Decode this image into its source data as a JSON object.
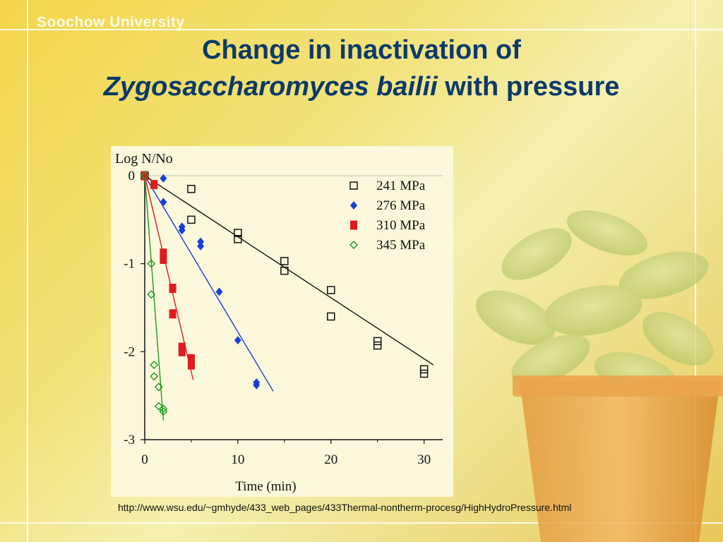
{
  "header": {
    "brand": "Soochow University",
    "title_line1": "Change in inactivation of",
    "title_line2_italic": "Zygosaccharomyces bailii",
    "title_line2_rest": " with pressure"
  },
  "source_url": "http://www.wsu.edu/~gmhyde/433_web_pages/433Thermal-nontherm-procesg/HighHydroPressure.html",
  "decor": {
    "plant_icon": "potted-plant-icon"
  },
  "chart_data": {
    "type": "scatter",
    "title": "",
    "xlabel": "Time (min)",
    "ylabel": "Log N/No",
    "xlim": [
      0,
      32
    ],
    "ylim": [
      -3,
      0
    ],
    "xticks": [
      0,
      10,
      20,
      30
    ],
    "yticks": [
      0,
      -1,
      -2,
      -3
    ],
    "xtick_labels": [
      "0",
      "10",
      "20",
      "30"
    ],
    "ytick_labels": [
      "0",
      "-1",
      "-2",
      "-3"
    ],
    "legend_position": "top-right",
    "grid": false,
    "series": [
      {
        "name": "241 MPa",
        "marker": "open-square",
        "color": "#111111",
        "points": [
          [
            0,
            0
          ],
          [
            5,
            -0.15
          ],
          [
            5,
            -0.5
          ],
          [
            10,
            -0.65
          ],
          [
            10,
            -0.72
          ],
          [
            15,
            -0.97
          ],
          [
            15,
            -1.08
          ],
          [
            20,
            -1.3
          ],
          [
            20,
            -1.6
          ],
          [
            25,
            -1.88
          ],
          [
            25,
            -1.93
          ],
          [
            30,
            -2.2
          ],
          [
            30,
            -2.25
          ]
        ],
        "fit": [
          [
            0,
            0
          ],
          [
            31,
            -2.15
          ]
        ]
      },
      {
        "name": "276 MPa",
        "marker": "filled-diamond",
        "color": "#1a3fd6",
        "points": [
          [
            0,
            0
          ],
          [
            2,
            -0.03
          ],
          [
            2,
            -0.3
          ],
          [
            4,
            -0.58
          ],
          [
            4,
            -0.62
          ],
          [
            6,
            -0.75
          ],
          [
            6,
            -0.8
          ],
          [
            8,
            -1.32
          ],
          [
            10,
            -1.87
          ],
          [
            12,
            -2.35
          ],
          [
            12,
            -2.38
          ]
        ],
        "fit": [
          [
            0,
            0
          ],
          [
            13.8,
            -2.45
          ]
        ]
      },
      {
        "name": "310 MPa",
        "marker": "filled-square",
        "color": "#e01b1b",
        "points": [
          [
            0,
            0
          ],
          [
            1,
            -0.1
          ],
          [
            2,
            -0.88
          ],
          [
            2,
            -0.95
          ],
          [
            3,
            -1.28
          ],
          [
            3,
            -1.57
          ],
          [
            4,
            -1.95
          ],
          [
            4,
            -2.0
          ],
          [
            5,
            -2.08
          ],
          [
            5,
            -2.15
          ]
        ],
        "fit": [
          [
            0,
            0
          ],
          [
            5.2,
            -2.32
          ]
        ]
      },
      {
        "name": "345 MPa",
        "marker": "open-diamond",
        "color": "#1c9a1c",
        "points": [
          [
            0,
            0
          ],
          [
            0.7,
            -1.0
          ],
          [
            0.7,
            -1.35
          ],
          [
            1,
            -2.15
          ],
          [
            1,
            -2.28
          ],
          [
            1.5,
            -2.4
          ],
          [
            1.5,
            -2.62
          ],
          [
            2,
            -2.65
          ],
          [
            2,
            -2.68
          ]
        ],
        "fit": [
          [
            0,
            0
          ],
          [
            2,
            -2.78
          ]
        ]
      }
    ]
  }
}
